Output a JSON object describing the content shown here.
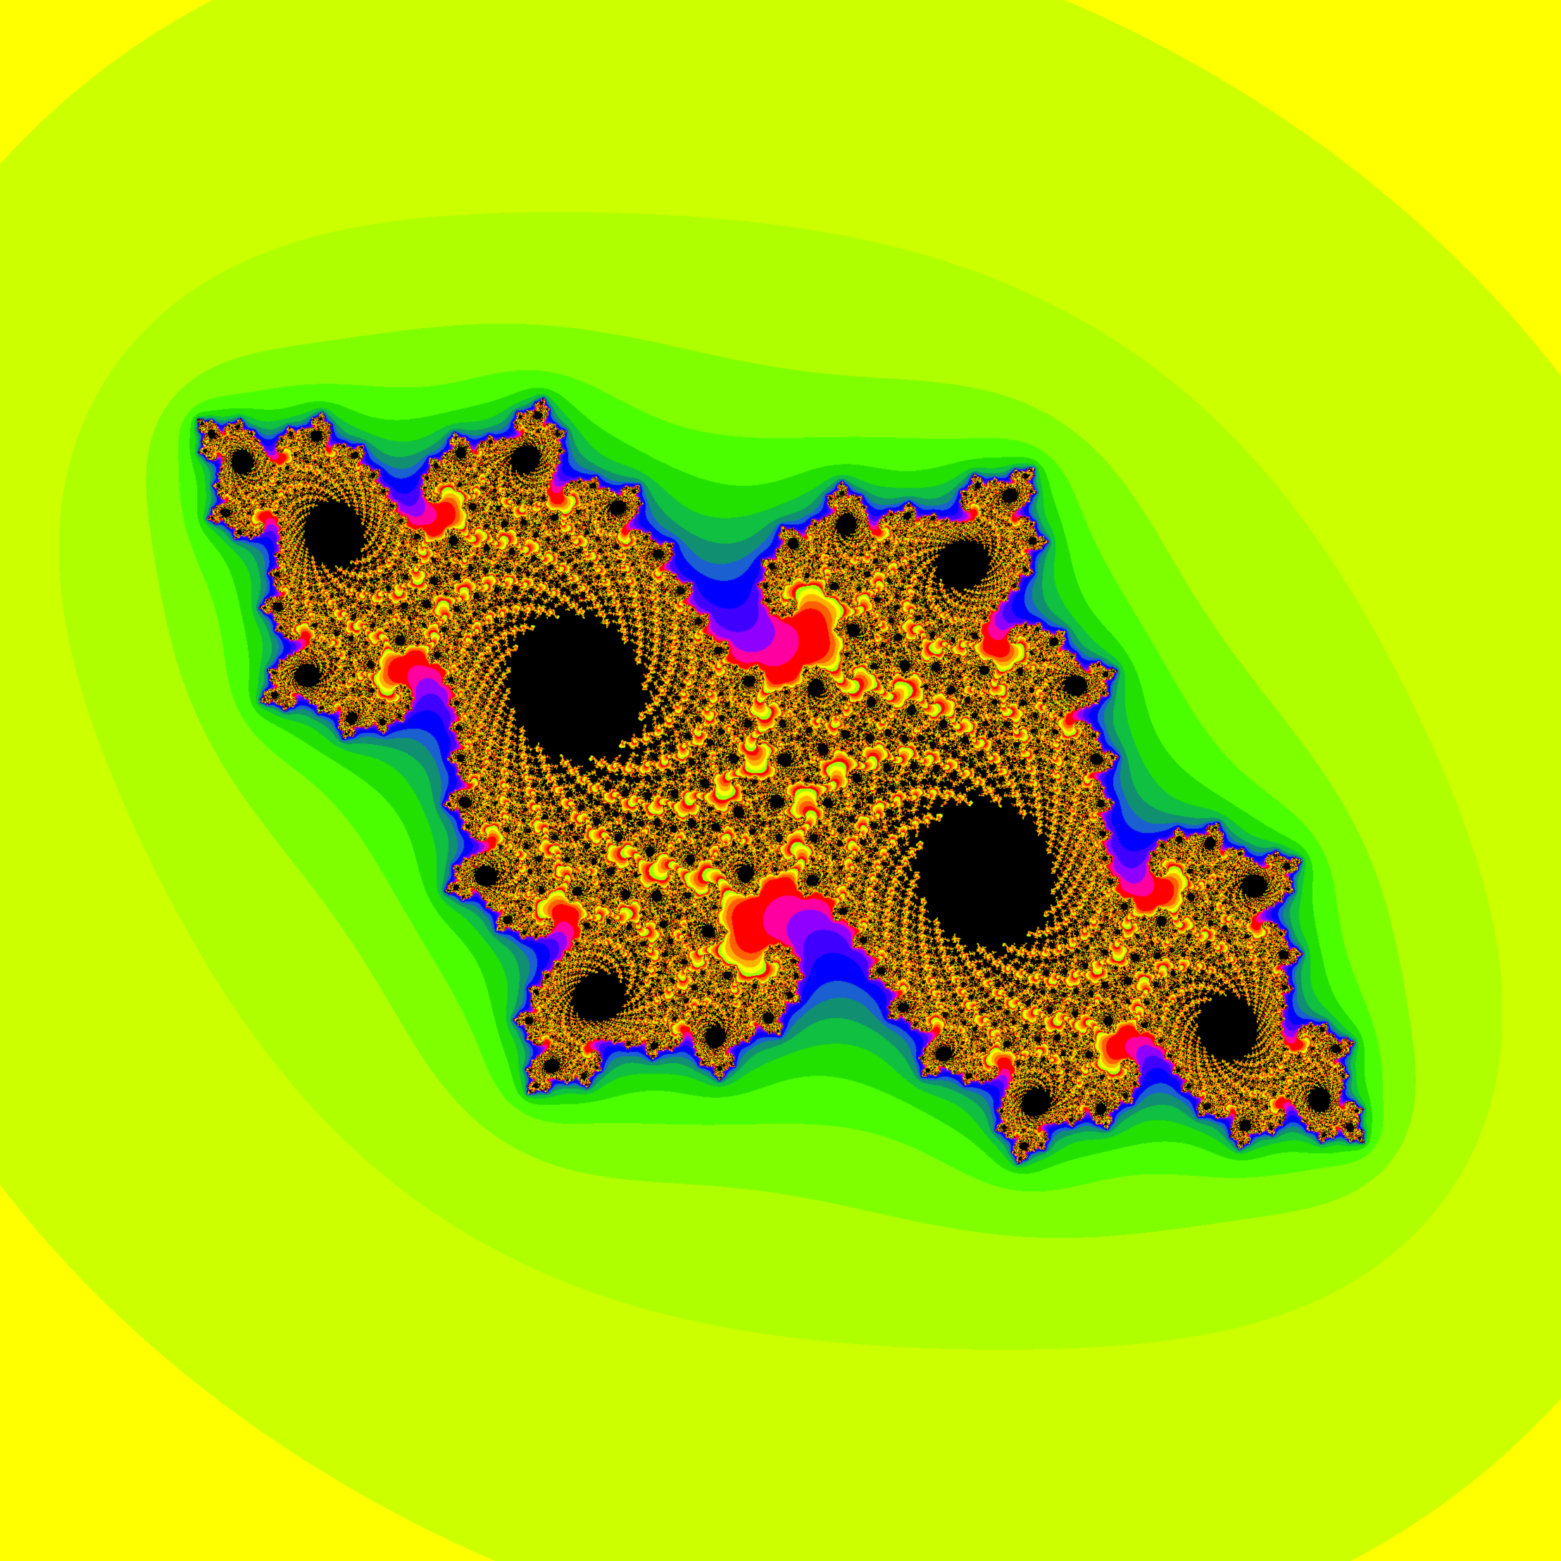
{
  "image": {
    "subject": "julia-set-fractal",
    "palette": [
      "#ffff00",
      "#ccff00",
      "#b0ff00",
      "#80ff00",
      "#4cff00",
      "#22e000",
      "#10c040",
      "#109070",
      "#1a60d0",
      "#0000ff",
      "#4000ff",
      "#9000ff",
      "#ff00a0",
      "#ff0000",
      "#ff6000",
      "#ffb000",
      "#ffff00",
      "#a0ff00"
    ],
    "interior_color": "#000000"
  }
}
